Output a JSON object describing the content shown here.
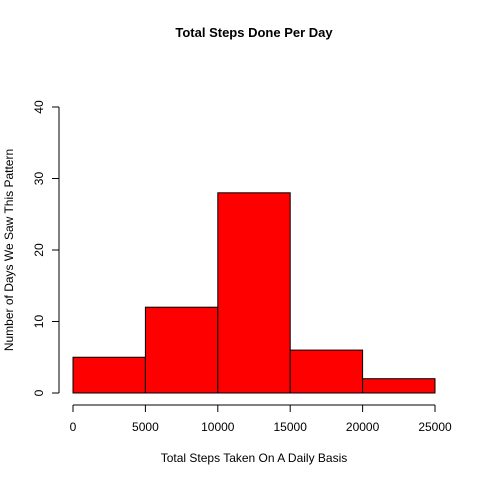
{
  "chart_data": {
    "type": "bar",
    "subtype": "histogram",
    "title": "Total Steps Done Per Day",
    "xlabel": "Total Steps Taken On A Daily Basis",
    "ylabel": "Number of Days We Saw This Pattern",
    "bins": [
      {
        "from": 0,
        "to": 5000,
        "count": 5
      },
      {
        "from": 5000,
        "to": 10000,
        "count": 12
      },
      {
        "from": 10000,
        "to": 15000,
        "count": 28
      },
      {
        "from": 15000,
        "to": 20000,
        "count": 6
      },
      {
        "from": 20000,
        "to": 25000,
        "count": 2
      }
    ],
    "x_ticks": [
      "0",
      "5000",
      "10000",
      "15000",
      "20000",
      "25000"
    ],
    "y_ticks": [
      "0",
      "10",
      "20",
      "30",
      "40"
    ],
    "xlim": [
      0,
      25000
    ],
    "ylim": [
      0,
      40
    ],
    "grid": false,
    "legend": "none",
    "colors": {
      "bar_fill": "#ff0000",
      "bar_stroke": "#000000",
      "axis": "#000000",
      "background": "#ffffff"
    }
  }
}
